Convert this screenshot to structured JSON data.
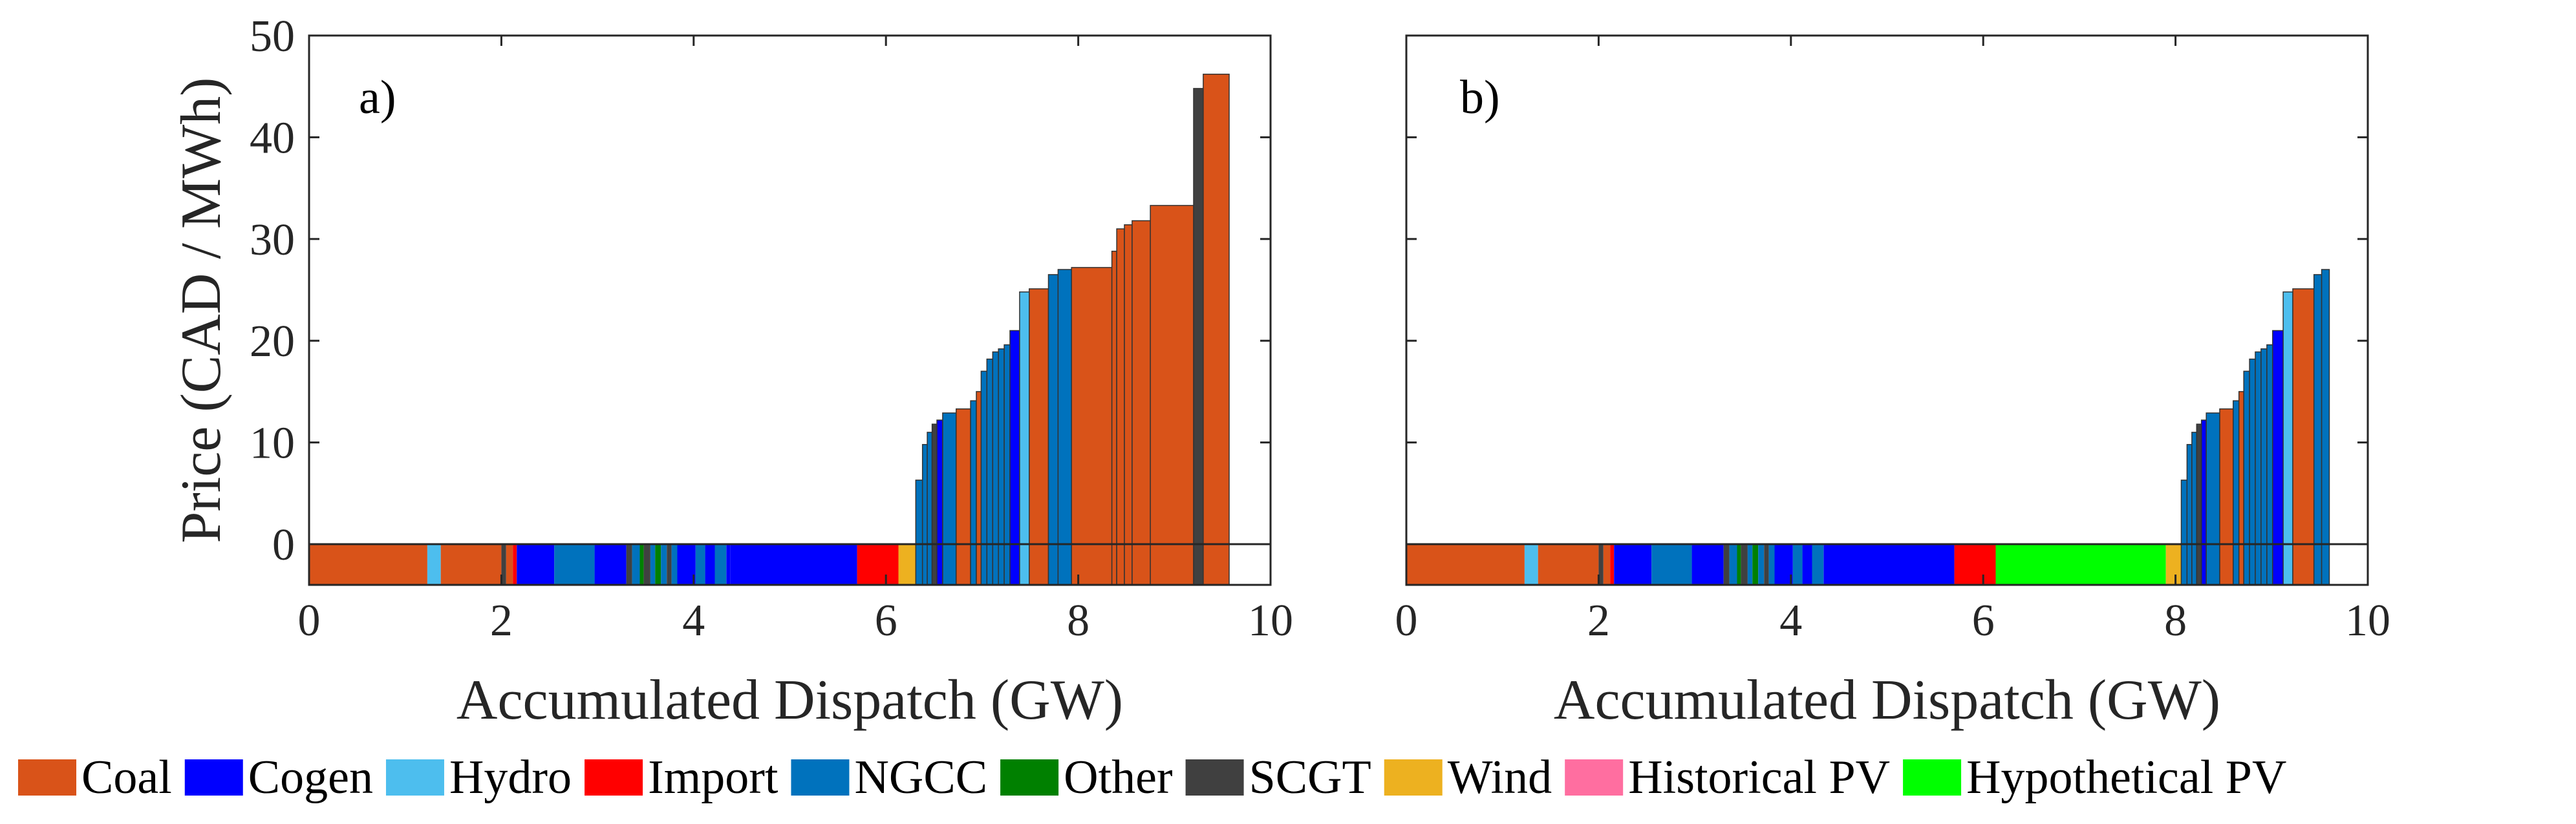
{
  "legend": [
    {
      "label": "Coal",
      "color": "#D95319"
    },
    {
      "label": "Cogen",
      "color": "#0000FF"
    },
    {
      "label": "Hydro",
      "color": "#4DBEEE"
    },
    {
      "label": "Import",
      "color": "#FF0000"
    },
    {
      "label": "NGCC",
      "color": "#0072BD"
    },
    {
      "label": "Other",
      "color": "#008000"
    },
    {
      "label": "SCGT",
      "color": "#404040"
    },
    {
      "label": "Wind",
      "color": "#EDB120"
    },
    {
      "label": "Historical PV",
      "color": "#FF6EA0"
    },
    {
      "label": "Hypothetical PV",
      "color": "#00FF00"
    }
  ],
  "chart_data": [
    {
      "type": "bar",
      "panel_label": "a)",
      "xlabel": "Accumulated Dispatch (GW)",
      "ylabel": "Price (CAD / MWh)",
      "xlim": [
        0,
        10
      ],
      "ylim": [
        -4,
        50
      ],
      "xticks": [
        0,
        2,
        4,
        6,
        8,
        10
      ],
      "yticks": [
        0,
        10,
        20,
        30,
        40,
        50
      ],
      "bars": [
        {
          "x0": 0.0,
          "x1": 1.23,
          "price": 0,
          "source": "Coal"
        },
        {
          "x0": 1.23,
          "x1": 1.37,
          "price": 0,
          "source": "Hydro"
        },
        {
          "x0": 1.37,
          "x1": 2.0,
          "price": 0,
          "source": "Coal"
        },
        {
          "x0": 2.0,
          "x1": 2.05,
          "price": 0,
          "source": "SCGT"
        },
        {
          "x0": 2.05,
          "x1": 2.12,
          "price": 0,
          "source": "Coal"
        },
        {
          "x0": 2.12,
          "x1": 2.16,
          "price": 0,
          "source": "Import"
        },
        {
          "x0": 2.16,
          "x1": 2.55,
          "price": 0,
          "source": "Cogen"
        },
        {
          "x0": 2.55,
          "x1": 2.97,
          "price": 0,
          "source": "NGCC"
        },
        {
          "x0": 2.97,
          "x1": 3.3,
          "price": 0,
          "source": "Cogen"
        },
        {
          "x0": 3.3,
          "x1": 3.36,
          "price": 0,
          "source": "SCGT"
        },
        {
          "x0": 3.36,
          "x1": 3.44,
          "price": 0,
          "source": "NGCC"
        },
        {
          "x0": 3.44,
          "x1": 3.48,
          "price": 0,
          "source": "Other"
        },
        {
          "x0": 3.48,
          "x1": 3.55,
          "price": 0,
          "source": "SCGT"
        },
        {
          "x0": 3.55,
          "x1": 3.6,
          "price": 0,
          "source": "NGCC"
        },
        {
          "x0": 3.6,
          "x1": 3.66,
          "price": 0,
          "source": "Other"
        },
        {
          "x0": 3.66,
          "x1": 3.72,
          "price": 0,
          "source": "NGCC"
        },
        {
          "x0": 3.72,
          "x1": 3.77,
          "price": 0,
          "source": "SCGT"
        },
        {
          "x0": 3.77,
          "x1": 3.83,
          "price": 0,
          "source": "NGCC"
        },
        {
          "x0": 3.83,
          "x1": 4.02,
          "price": 0,
          "source": "Cogen"
        },
        {
          "x0": 4.02,
          "x1": 4.12,
          "price": 0,
          "source": "NGCC"
        },
        {
          "x0": 4.12,
          "x1": 4.22,
          "price": 0,
          "source": "Cogen"
        },
        {
          "x0": 4.22,
          "x1": 4.34,
          "price": 0,
          "source": "NGCC"
        },
        {
          "x0": 4.34,
          "x1": 4.38,
          "price": 0,
          "source": "Cogen"
        },
        {
          "x0": 4.38,
          "x1": 5.7,
          "price": 0,
          "source": "Cogen"
        },
        {
          "x0": 5.7,
          "x1": 6.13,
          "price": 0,
          "source": "Import"
        },
        {
          "x0": 6.13,
          "x1": 6.31,
          "price": 0,
          "source": "Wind"
        },
        {
          "x0": 6.31,
          "x1": 6.38,
          "price": 6.3,
          "source": "NGCC"
        },
        {
          "x0": 6.38,
          "x1": 6.43,
          "price": 9.8,
          "source": "NGCC"
        },
        {
          "x0": 6.43,
          "x1": 6.48,
          "price": 11.0,
          "source": "NGCC"
        },
        {
          "x0": 6.48,
          "x1": 6.53,
          "price": 11.8,
          "source": "SCGT"
        },
        {
          "x0": 6.53,
          "x1": 6.59,
          "price": 12.2,
          "source": "Cogen"
        },
        {
          "x0": 6.59,
          "x1": 6.73,
          "price": 12.9,
          "source": "NGCC"
        },
        {
          "x0": 6.73,
          "x1": 6.88,
          "price": 13.3,
          "source": "Coal"
        },
        {
          "x0": 6.88,
          "x1": 6.94,
          "price": 14.1,
          "source": "NGCC"
        },
        {
          "x0": 6.94,
          "x1": 6.99,
          "price": 15.0,
          "source": "Coal"
        },
        {
          "x0": 6.99,
          "x1": 7.05,
          "price": 17.0,
          "source": "NGCC"
        },
        {
          "x0": 7.05,
          "x1": 7.11,
          "price": 18.2,
          "source": "NGCC"
        },
        {
          "x0": 7.11,
          "x1": 7.17,
          "price": 18.9,
          "source": "NGCC"
        },
        {
          "x0": 7.17,
          "x1": 7.23,
          "price": 19.2,
          "source": "NGCC"
        },
        {
          "x0": 7.23,
          "x1": 7.29,
          "price": 19.6,
          "source": "NGCC"
        },
        {
          "x0": 7.29,
          "x1": 7.39,
          "price": 21.0,
          "source": "Cogen"
        },
        {
          "x0": 7.39,
          "x1": 7.49,
          "price": 24.8,
          "source": "Hydro"
        },
        {
          "x0": 7.49,
          "x1": 7.69,
          "price": 25.1,
          "source": "Coal"
        },
        {
          "x0": 7.69,
          "x1": 7.79,
          "price": 26.5,
          "source": "NGCC"
        },
        {
          "x0": 7.79,
          "x1": 7.93,
          "price": 27.0,
          "source": "NGCC"
        },
        {
          "x0": 7.93,
          "x1": 8.35,
          "price": 27.2,
          "source": "Coal"
        },
        {
          "x0": 8.35,
          "x1": 8.4,
          "price": 28.8,
          "source": "Coal"
        },
        {
          "x0": 8.4,
          "x1": 8.48,
          "price": 31.0,
          "source": "Coal"
        },
        {
          "x0": 8.48,
          "x1": 8.56,
          "price": 31.4,
          "source": "Coal"
        },
        {
          "x0": 8.56,
          "x1": 8.75,
          "price": 31.8,
          "source": "Coal"
        },
        {
          "x0": 8.75,
          "x1": 9.2,
          "price": 33.3,
          "source": "Coal"
        },
        {
          "x0": 9.2,
          "x1": 9.3,
          "price": 44.8,
          "source": "SCGT"
        },
        {
          "x0": 9.3,
          "x1": 9.57,
          "price": 46.2,
          "source": "Coal"
        }
      ]
    },
    {
      "type": "bar",
      "panel_label": "b)",
      "xlabel": "Accumulated Dispatch (GW)",
      "ylabel": "",
      "xlim": [
        0,
        10
      ],
      "ylim": [
        -4,
        50
      ],
      "xticks": [
        0,
        2,
        4,
        6,
        8,
        10
      ],
      "yticks": [
        0,
        10,
        20,
        30,
        40,
        50
      ],
      "bars": [
        {
          "x0": 0.0,
          "x1": 1.23,
          "price": 0,
          "source": "Coal"
        },
        {
          "x0": 1.23,
          "x1": 1.37,
          "price": 0,
          "source": "Hydro"
        },
        {
          "x0": 1.37,
          "x1": 2.0,
          "price": 0,
          "source": "Coal"
        },
        {
          "x0": 2.0,
          "x1": 2.05,
          "price": 0,
          "source": "SCGT"
        },
        {
          "x0": 2.05,
          "x1": 2.12,
          "price": 0,
          "source": "Coal"
        },
        {
          "x0": 2.12,
          "x1": 2.16,
          "price": 0,
          "source": "Import"
        },
        {
          "x0": 2.16,
          "x1": 2.55,
          "price": 0,
          "source": "Cogen"
        },
        {
          "x0": 2.55,
          "x1": 2.97,
          "price": 0,
          "source": "NGCC"
        },
        {
          "x0": 2.97,
          "x1": 3.3,
          "price": 0,
          "source": "Cogen"
        },
        {
          "x0": 3.3,
          "x1": 3.36,
          "price": 0,
          "source": "SCGT"
        },
        {
          "x0": 3.36,
          "x1": 3.44,
          "price": 0,
          "source": "NGCC"
        },
        {
          "x0": 3.44,
          "x1": 3.48,
          "price": 0,
          "source": "Other"
        },
        {
          "x0": 3.48,
          "x1": 3.55,
          "price": 0,
          "source": "SCGT"
        },
        {
          "x0": 3.55,
          "x1": 3.6,
          "price": 0,
          "source": "NGCC"
        },
        {
          "x0": 3.6,
          "x1": 3.66,
          "price": 0,
          "source": "Other"
        },
        {
          "x0": 3.66,
          "x1": 3.72,
          "price": 0,
          "source": "NGCC"
        },
        {
          "x0": 3.72,
          "x1": 3.77,
          "price": 0,
          "source": "SCGT"
        },
        {
          "x0": 3.77,
          "x1": 3.83,
          "price": 0,
          "source": "NGCC"
        },
        {
          "x0": 3.83,
          "x1": 4.02,
          "price": 0,
          "source": "Cogen"
        },
        {
          "x0": 4.02,
          "x1": 4.12,
          "price": 0,
          "source": "NGCC"
        },
        {
          "x0": 4.12,
          "x1": 4.22,
          "price": 0,
          "source": "Cogen"
        },
        {
          "x0": 4.22,
          "x1": 4.34,
          "price": 0,
          "source": "NGCC"
        },
        {
          "x0": 4.34,
          "x1": 5.7,
          "price": 0,
          "source": "Cogen"
        },
        {
          "x0": 5.7,
          "x1": 6.13,
          "price": 0,
          "source": "Import"
        },
        {
          "x0": 6.13,
          "x1": 7.9,
          "price": 0,
          "source": "Hypothetical PV"
        },
        {
          "x0": 7.9,
          "x1": 8.06,
          "price": 0,
          "source": "Wind"
        },
        {
          "x0": 8.06,
          "x1": 8.12,
          "price": 6.3,
          "source": "NGCC"
        },
        {
          "x0": 8.12,
          "x1": 8.17,
          "price": 9.8,
          "source": "NGCC"
        },
        {
          "x0": 8.17,
          "x1": 8.22,
          "price": 11.0,
          "source": "NGCC"
        },
        {
          "x0": 8.22,
          "x1": 8.27,
          "price": 11.8,
          "source": "SCGT"
        },
        {
          "x0": 8.27,
          "x1": 8.32,
          "price": 12.2,
          "source": "Cogen"
        },
        {
          "x0": 8.32,
          "x1": 8.46,
          "price": 12.9,
          "source": "NGCC"
        },
        {
          "x0": 8.46,
          "x1": 8.6,
          "price": 13.3,
          "source": "Coal"
        },
        {
          "x0": 8.6,
          "x1": 8.66,
          "price": 14.1,
          "source": "NGCC"
        },
        {
          "x0": 8.66,
          "x1": 8.71,
          "price": 15.0,
          "source": "Coal"
        },
        {
          "x0": 8.71,
          "x1": 8.77,
          "price": 17.0,
          "source": "NGCC"
        },
        {
          "x0": 8.77,
          "x1": 8.83,
          "price": 18.2,
          "source": "NGCC"
        },
        {
          "x0": 8.83,
          "x1": 8.89,
          "price": 18.9,
          "source": "NGCC"
        },
        {
          "x0": 8.89,
          "x1": 8.95,
          "price": 19.2,
          "source": "NGCC"
        },
        {
          "x0": 8.95,
          "x1": 9.01,
          "price": 19.6,
          "source": "NGCC"
        },
        {
          "x0": 9.01,
          "x1": 9.12,
          "price": 21.0,
          "source": "Cogen"
        },
        {
          "x0": 9.12,
          "x1": 9.22,
          "price": 24.8,
          "source": "Hydro"
        },
        {
          "x0": 9.22,
          "x1": 9.44,
          "price": 25.1,
          "source": "Coal"
        },
        {
          "x0": 9.44,
          "x1": 9.52,
          "price": 26.5,
          "source": "NGCC"
        },
        {
          "x0": 9.52,
          "x1": 9.6,
          "price": 27.0,
          "source": "NGCC"
        }
      ]
    }
  ]
}
